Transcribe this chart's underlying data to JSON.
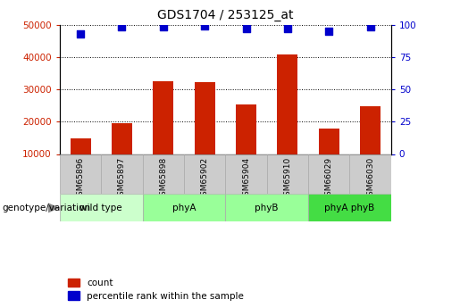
{
  "title": "GDS1704 / 253125_at",
  "samples": [
    "GSM65896",
    "GSM65897",
    "GSM65898",
    "GSM65902",
    "GSM65904",
    "GSM65910",
    "GSM66029",
    "GSM66030"
  ],
  "counts": [
    14800,
    19500,
    32500,
    32200,
    25200,
    40800,
    17800,
    24800
  ],
  "percentiles": [
    93,
    98,
    98,
    99,
    97,
    97,
    95,
    98
  ],
  "bar_color": "#cc2200",
  "dot_color": "#0000cc",
  "ylim_left": [
    10000,
    50000
  ],
  "ylim_right": [
    0,
    100
  ],
  "yticks_left": [
    10000,
    20000,
    30000,
    40000,
    50000
  ],
  "yticks_right": [
    0,
    25,
    50,
    75,
    100
  ],
  "groups": [
    {
      "label": "wild type",
      "start": 0,
      "end": 2,
      "color": "#ccffcc"
    },
    {
      "label": "phyA",
      "start": 2,
      "end": 4,
      "color": "#99ff99"
    },
    {
      "label": "phyB",
      "start": 4,
      "end": 6,
      "color": "#99ff99"
    },
    {
      "label": "phyA phyB",
      "start": 6,
      "end": 8,
      "color": "#44dd44"
    }
  ],
  "sample_box_color": "#cccccc",
  "xlabel_text": "genotype/variation",
  "legend_red_label": "count",
  "legend_blue_label": "percentile rank within the sample",
  "left_label_color": "#cc2200",
  "right_label_color": "#0000cc"
}
